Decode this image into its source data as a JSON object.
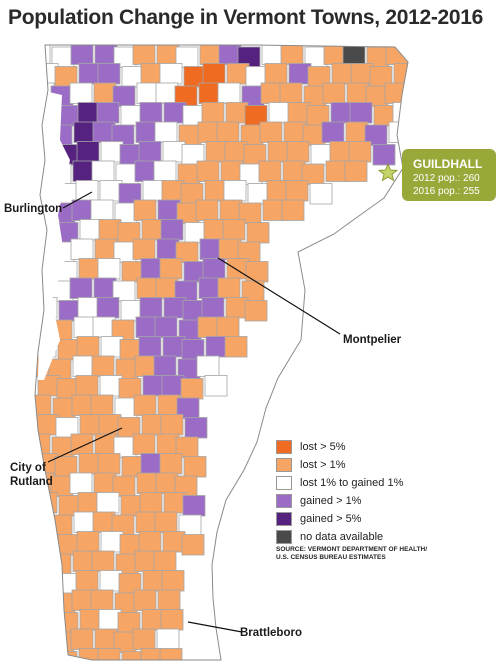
{
  "title": "Population Change in Vermont Towns, 2012-2016",
  "colors": {
    "lost_gt_5": "#ef6b22",
    "lost_gt_1": "#f7a564",
    "neutral": "#ffffff",
    "gained_gt_1": "#9b6cc6",
    "gained_gt_5": "#55227f",
    "no_data": "#4a4a4a",
    "callout": "#9aa83a",
    "border": "#a5a5a5"
  },
  "legend": [
    {
      "label": "lost > 5%",
      "color": "#ef6b22"
    },
    {
      "label": "lost > 1%",
      "color": "#f7a564"
    },
    {
      "label": "lost 1% to gained 1%",
      "color": "#ffffff"
    },
    {
      "label": "gained > 1%",
      "color": "#9b6cc6"
    },
    {
      "label": "gained > 5%",
      "color": "#55227f"
    },
    {
      "label": "no data available",
      "color": "#4a4a4a"
    }
  ],
  "source": [
    "SOURCE: VERMONT DEPARTMENT OF HEALTH/",
    "U.S. CENSUS BUREAU ESTIMATES"
  ],
  "callout": {
    "name": "GUILDHALL",
    "pop_2012": "2012 pop.: 260",
    "pop_2016": "2016 pop.: 255",
    "marker": "star-icon"
  },
  "cities": {
    "burlington": "Burlington",
    "montpelier": "Montpelier",
    "rutland_line1": "City of",
    "rutland_line2": "Rutland",
    "brattleboro": "Brattleboro"
  }
}
